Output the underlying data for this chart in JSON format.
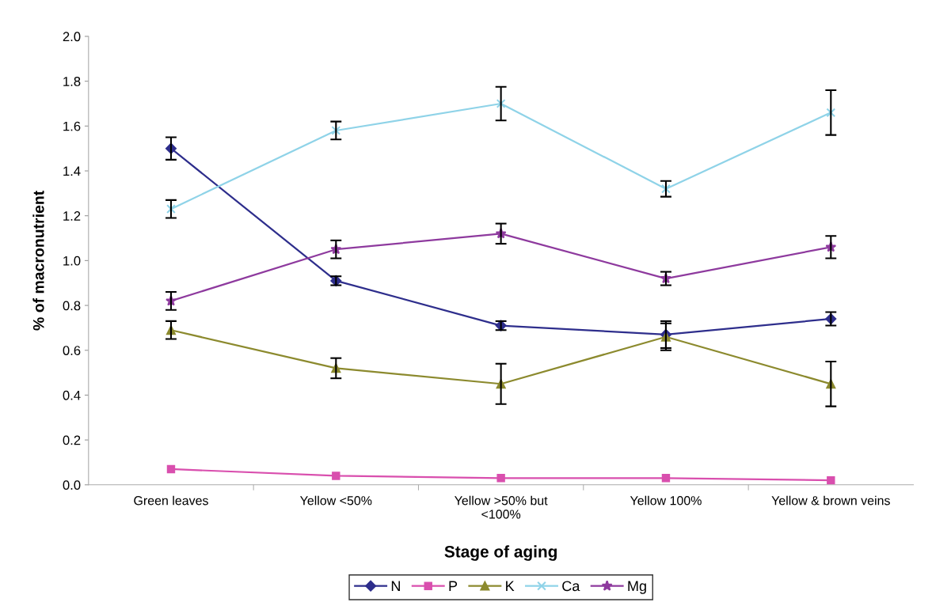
{
  "chart_data": {
    "type": "line",
    "xlabel": "Stage of aging",
    "ylabel": "% of macronutrient",
    "categories": [
      "Green leaves",
      "Yellow <50%",
      "Yellow >50% but\n<100%",
      "Yellow 100%",
      "Yellow & brown veins"
    ],
    "ylim": [
      0,
      2.0
    ],
    "yticks": [
      {
        "value": 0,
        "label": "0.0"
      },
      {
        "value": 0.2,
        "label": "0.2"
      },
      {
        "value": 0.4,
        "label": "0.4"
      },
      {
        "value": 0.6,
        "label": "0.6"
      },
      {
        "value": 0.8,
        "label": "0.8"
      },
      {
        "value": 1.0,
        "label": "1.0"
      },
      {
        "value": 1.2,
        "label": "1.2"
      },
      {
        "value": 1.4,
        "label": "1.4"
      },
      {
        "value": 1.6,
        "label": "1.6"
      },
      {
        "value": 1.8,
        "label": "1.8"
      },
      {
        "value": 2.0,
        "label": "2.0"
      }
    ],
    "grid": false,
    "legend": "bottom",
    "series": [
      {
        "name": "N",
        "color": "#2e2e8c",
        "marker": "diamond",
        "values": [
          1.5,
          0.91,
          0.71,
          0.67,
          0.74
        ],
        "errors": [
          0.05,
          0.02,
          0.02,
          0.06,
          0.03
        ]
      },
      {
        "name": "P",
        "color": "#d94fae",
        "marker": "square",
        "values": [
          0.07,
          0.04,
          0.03,
          0.03,
          0.02
        ]
      },
      {
        "name": "K",
        "color": "#8c8a2e",
        "marker": "triangle",
        "values": [
          0.69,
          0.52,
          0.45,
          0.66,
          0.45
        ],
        "errors": [
          0.04,
          0.045,
          0.09,
          0.06,
          0.1
        ]
      },
      {
        "name": "Ca",
        "color": "#8fd3e8",
        "marker": "cross",
        "values": [
          1.23,
          1.58,
          1.7,
          1.32,
          1.66
        ],
        "errors": [
          0.04,
          0.04,
          0.075,
          0.035,
          0.1
        ]
      },
      {
        "name": "Mg",
        "color": "#8e3a9e",
        "marker": "star",
        "values": [
          0.82,
          1.05,
          1.12,
          0.92,
          1.06
        ],
        "errors": [
          0.04,
          0.04,
          0.045,
          0.03,
          0.05
        ]
      }
    ]
  }
}
